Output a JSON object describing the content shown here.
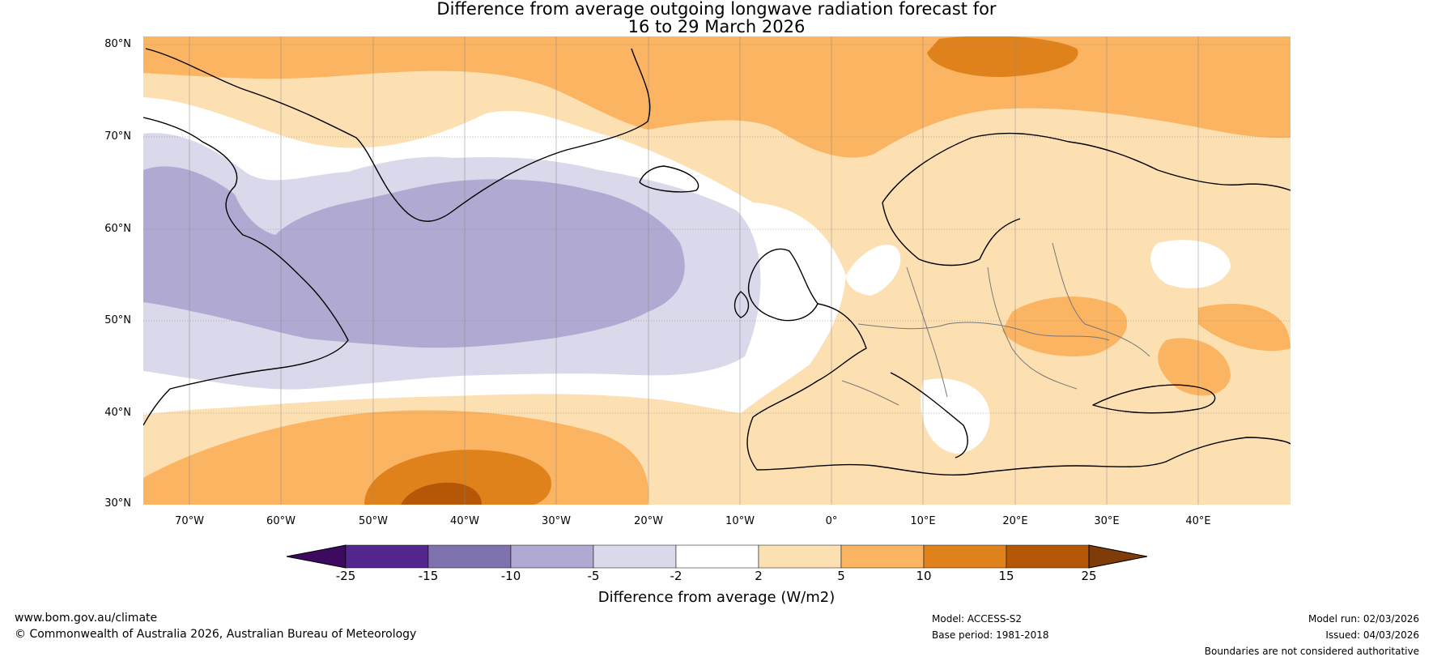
{
  "title": {
    "line1": "Difference from average outgoing longwave radiation forecast for",
    "line2": "16 to 29 March 2026"
  },
  "map": {
    "lat_labels": [
      "80°N",
      "70°N",
      "60°N",
      "50°N",
      "40°N",
      "30°N"
    ],
    "lon_labels": [
      "70°W",
      "60°W",
      "50°W",
      "40°W",
      "30°W",
      "20°W",
      "10°W",
      "0°",
      "10°E",
      "20°E",
      "30°E",
      "40°E"
    ],
    "lat_range": [
      30,
      81
    ],
    "lon_range": [
      -75,
      50
    ]
  },
  "colorbar": {
    "title": "Difference from average (W/m2)",
    "ticks": [
      "-25",
      "-15",
      "-10",
      "-5",
      "-2",
      "2",
      "5",
      "10",
      "15",
      "25"
    ],
    "colors": [
      "#3c0a5f",
      "#54278f",
      "#7f72ae",
      "#b0a9d1",
      "#d9d9eb",
      "#ffffff",
      "#fde0b2",
      "#fbb461",
      "#e0821b",
      "#b45808",
      "#7f3b08"
    ]
  },
  "footer": {
    "website": "www.bom.gov.au/climate",
    "copyright": "© Commonwealth of Australia 2026, Australian Bureau of Meteorology",
    "model": "Model: ACCESS-S2",
    "base_period": "Base period: 1981-2018",
    "model_run": "Model run: 02/03/2026",
    "issued": "Issued: 04/03/2026",
    "disclaimer": "Boundaries are not considered authoritative"
  }
}
